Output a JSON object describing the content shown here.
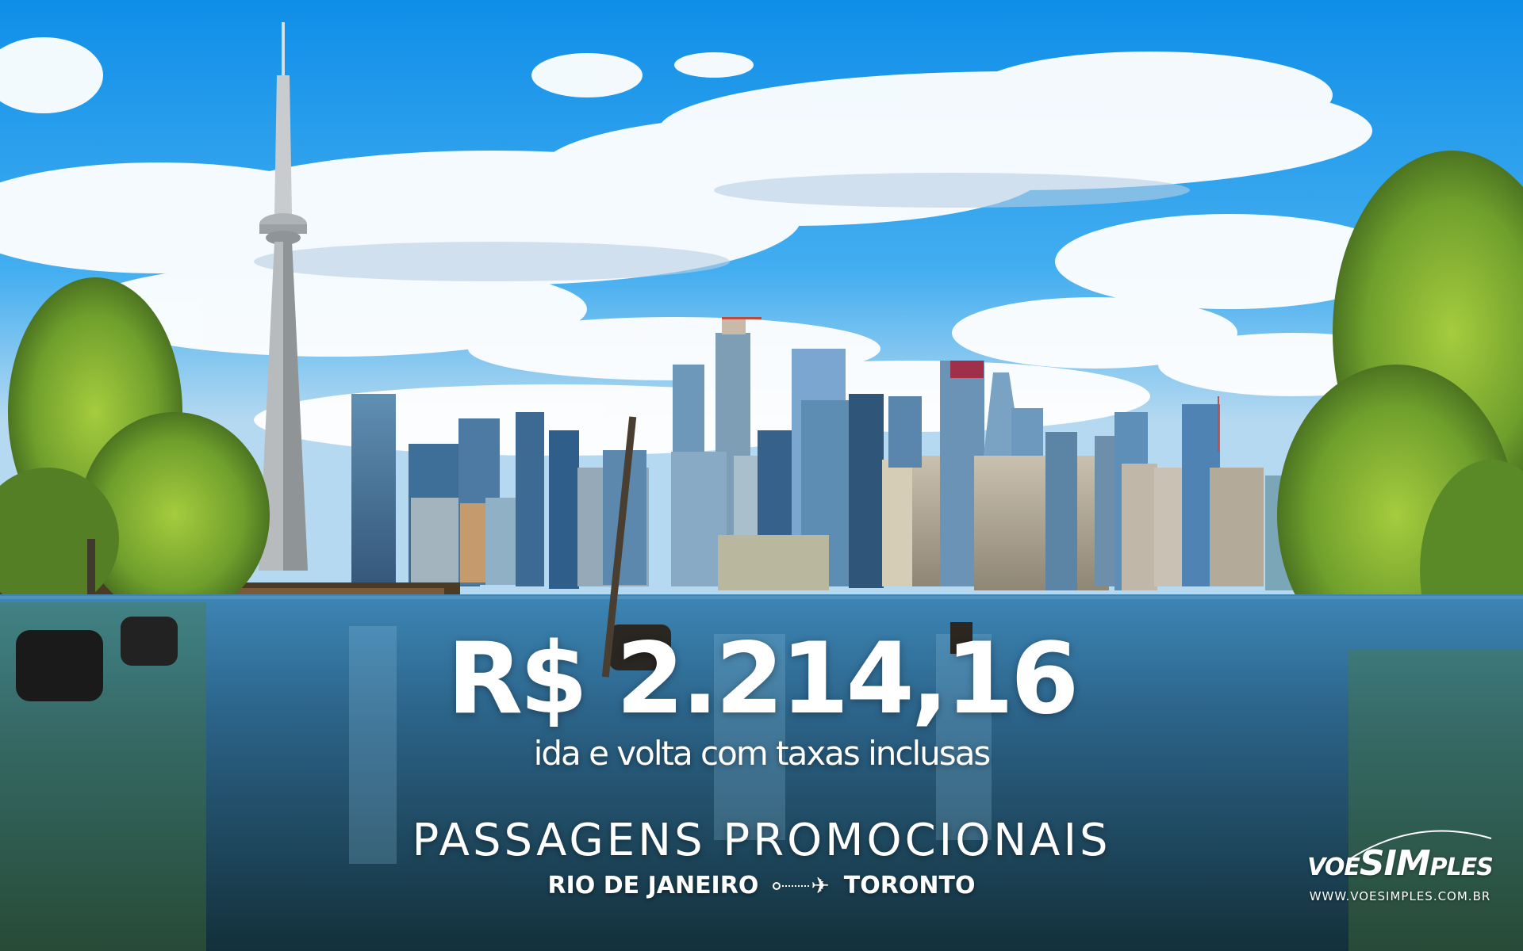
{
  "promo": {
    "price": "R$ 2.214,16",
    "subtitle": "ida e volta com taxas inclusas",
    "headline": "PASSAGENS PROMOCIONAIS",
    "origin": "RIO DE JANEIRO",
    "destination": "TORONTO",
    "route_icon": "airplane-icon"
  },
  "logo": {
    "brand_part1": "VOE",
    "brand_part2": "SIM",
    "brand_part3": "PLES",
    "url": "WWW.VOESIMPLES.COM.BR"
  },
  "colors": {
    "sky": "#1aa0ef",
    "water": "#2c6f96",
    "foliage": "#7fb23a",
    "text": "#ffffff"
  }
}
